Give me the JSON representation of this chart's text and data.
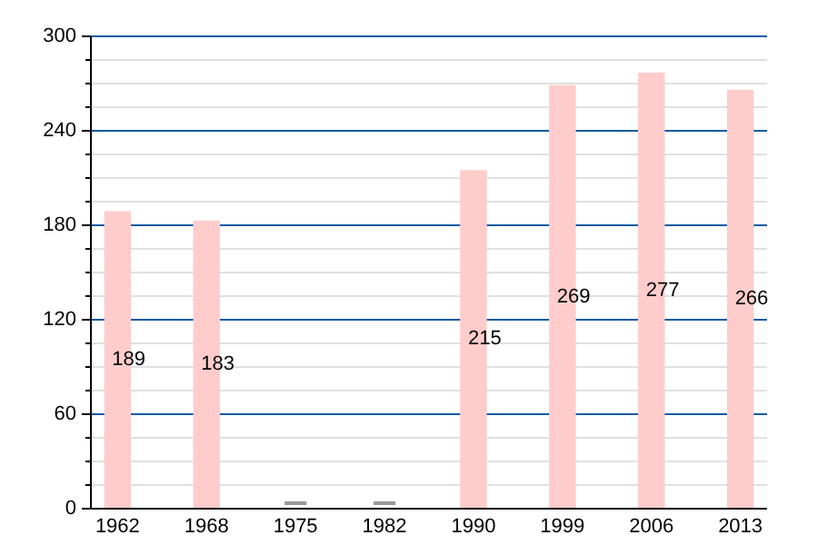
{
  "chart_data": {
    "type": "bar",
    "categories": [
      "1962",
      "1968",
      "1975",
      "1982",
      "1990",
      "1999",
      "2006",
      "2013"
    ],
    "values": [
      189,
      183,
      null,
      null,
      215,
      269,
      277,
      266
    ],
    "color": "#ffcccc",
    "data_labels": true,
    "ylim": [
      0,
      300
    ],
    "yticks": [
      0,
      {
        "value": 15,
        "label": null
      },
      {
        "value": 30,
        "label": null
      },
      {
        "value": 45,
        "label": null
      },
      60,
      {
        "value": 75,
        "label": null
      },
      {
        "value": 90,
        "label": null
      },
      {
        "value": 105,
        "label": null
      },
      120,
      {
        "value": 135,
        "label": null
      },
      {
        "value": 150,
        "label": null
      },
      {
        "value": 165,
        "label": null
      },
      180,
      {
        "value": 195,
        "label": null
      },
      {
        "value": 210,
        "label": null
      },
      {
        "value": 225,
        "label": null
      },
      240,
      {
        "value": 255,
        "label": null
      },
      {
        "value": 270,
        "label": null
      },
      {
        "value": 285,
        "label": null
      },
      300
    ],
    "grid": "y"
  }
}
